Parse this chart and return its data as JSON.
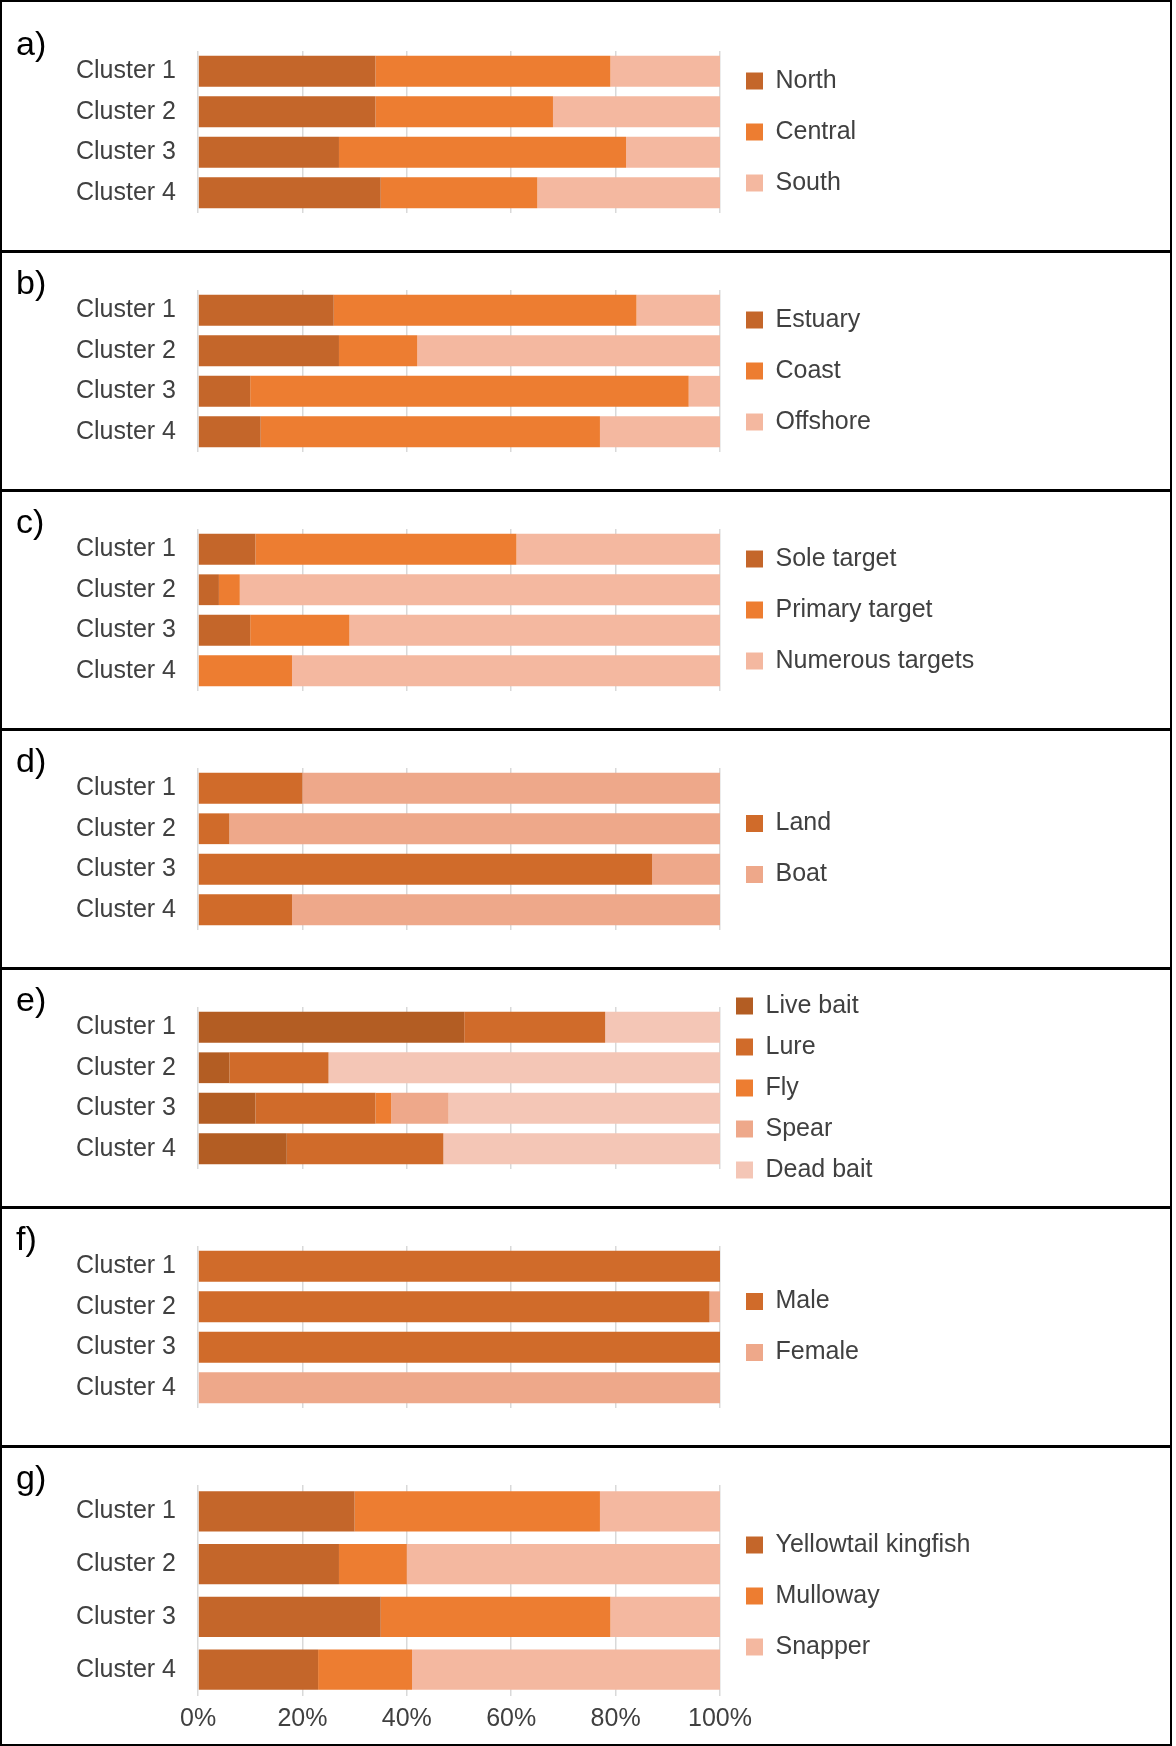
{
  "chart_data": [
    {
      "type": "bar",
      "title": "a)",
      "orientation": "horizontal",
      "stacked": true,
      "categories": [
        "Cluster 1",
        "Cluster 2",
        "Cluster 3",
        "Cluster 4"
      ],
      "series": [
        {
          "name": "North",
          "color": "#c4662a",
          "values": [
            34,
            34,
            27,
            35
          ]
        },
        {
          "name": "Central",
          "color": "#ed7d31",
          "values": [
            45,
            34,
            55,
            30
          ]
        },
        {
          "name": "South",
          "color": "#f4b8a0",
          "values": [
            21,
            32,
            18,
            35
          ]
        }
      ],
      "xlim": [
        0,
        100
      ],
      "xticks": [
        0,
        20,
        40,
        60,
        80,
        100
      ],
      "grid": "x",
      "legend": "right",
      "tick_labels": "y"
    },
    {
      "type": "bar",
      "title": "b)",
      "orientation": "horizontal",
      "stacked": true,
      "categories": [
        "Cluster 1",
        "Cluster 2",
        "Cluster 3",
        "Cluster 4"
      ],
      "series": [
        {
          "name": "Estuary",
          "color": "#c4662a",
          "values": [
            26,
            27,
            10,
            12
          ]
        },
        {
          "name": "Coast",
          "color": "#ed7d31",
          "values": [
            58,
            15,
            84,
            65
          ]
        },
        {
          "name": "Offshore",
          "color": "#f4b8a0",
          "values": [
            16,
            58,
            6,
            23
          ]
        }
      ],
      "xlim": [
        0,
        100
      ],
      "xticks": [
        0,
        20,
        40,
        60,
        80,
        100
      ],
      "grid": "x",
      "legend": "right",
      "tick_labels": "y"
    },
    {
      "type": "bar",
      "title": "c)",
      "orientation": "horizontal",
      "stacked": true,
      "categories": [
        "Cluster 1",
        "Cluster 2",
        "Cluster 3",
        "Cluster 4"
      ],
      "series": [
        {
          "name": "Sole target",
          "color": "#c4662a",
          "values": [
            11,
            4,
            10,
            0
          ]
        },
        {
          "name": "Primary target",
          "color": "#ed7d31",
          "values": [
            50,
            4,
            19,
            18
          ]
        },
        {
          "name": "Numerous targets",
          "color": "#f4b8a0",
          "values": [
            39,
            92,
            71,
            82
          ]
        }
      ],
      "xlim": [
        0,
        100
      ],
      "xticks": [
        0,
        20,
        40,
        60,
        80,
        100
      ],
      "grid": "x",
      "legend": "right",
      "tick_labels": "y"
    },
    {
      "type": "bar",
      "title": "d)",
      "orientation": "horizontal",
      "stacked": true,
      "categories": [
        "Cluster 1",
        "Cluster 2",
        "Cluster 3",
        "Cluster 4"
      ],
      "series": [
        {
          "name": "Land",
          "color": "#d06b2a",
          "values": [
            20,
            6,
            87,
            18
          ]
        },
        {
          "name": "Boat",
          "color": "#eea88a",
          "values": [
            80,
            94,
            13,
            82
          ]
        }
      ],
      "xlim": [
        0,
        100
      ],
      "xticks": [
        0,
        20,
        40,
        60,
        80,
        100
      ],
      "grid": "x",
      "legend": "right",
      "tick_labels": "y"
    },
    {
      "type": "bar",
      "title": "e)",
      "orientation": "horizontal",
      "stacked": true,
      "categories": [
        "Cluster 1",
        "Cluster 2",
        "Cluster 3",
        "Cluster 4"
      ],
      "series": [
        {
          "name": "Live bait",
          "color": "#b35d23",
          "values": [
            51,
            6,
            11,
            17
          ]
        },
        {
          "name": "Lure",
          "color": "#d06b2a",
          "values": [
            27,
            19,
            23,
            30
          ]
        },
        {
          "name": "Fly",
          "color": "#ed7d31",
          "values": [
            0,
            0,
            3,
            0
          ]
        },
        {
          "name": "Spear",
          "color": "#eea88a",
          "values": [
            0,
            0,
            11,
            0
          ]
        },
        {
          "name": "Dead bait",
          "color": "#f4c6b6",
          "values": [
            22,
            75,
            52,
            53
          ]
        }
      ],
      "xlim": [
        0,
        100
      ],
      "xticks": [
        0,
        20,
        40,
        60,
        80,
        100
      ],
      "grid": "x",
      "legend": "right",
      "tick_labels": "y"
    },
    {
      "type": "bar",
      "title": "f)",
      "orientation": "horizontal",
      "stacked": true,
      "categories": [
        "Cluster 1",
        "Cluster 2",
        "Cluster 3",
        "Cluster 4"
      ],
      "series": [
        {
          "name": "Male",
          "color": "#d06b2a",
          "values": [
            100,
            98,
            100,
            0
          ]
        },
        {
          "name": "Female",
          "color": "#eea88a",
          "values": [
            0,
            2,
            0,
            100
          ]
        }
      ],
      "xlim": [
        0,
        100
      ],
      "xticks": [
        0,
        20,
        40,
        60,
        80,
        100
      ],
      "grid": "x",
      "legend": "right",
      "tick_labels": "y"
    },
    {
      "type": "bar",
      "title": "g)",
      "orientation": "horizontal",
      "stacked": true,
      "categories": [
        "Cluster 1",
        "Cluster 2",
        "Cluster 3",
        "Cluster 4"
      ],
      "series": [
        {
          "name": "Yellowtail kingfish",
          "color": "#c4662a",
          "values": [
            30,
            27,
            35,
            23
          ]
        },
        {
          "name": "Mulloway",
          "color": "#ed7d31",
          "values": [
            47,
            13,
            44,
            18
          ]
        },
        {
          "name": "Snapper",
          "color": "#f4b8a0",
          "values": [
            23,
            60,
            21,
            59
          ]
        }
      ],
      "xlim": [
        0,
        100
      ],
      "xticks": [
        {
          "value": 0,
          "label": "0%"
        },
        {
          "value": 20,
          "label": "20%"
        },
        {
          "value": 40,
          "label": "40%"
        },
        {
          "value": 60,
          "label": "60%"
        },
        {
          "value": 80,
          "label": "80%"
        },
        {
          "value": 100,
          "label": "100%"
        }
      ],
      "grid": "x",
      "legend": "right"
    }
  ]
}
